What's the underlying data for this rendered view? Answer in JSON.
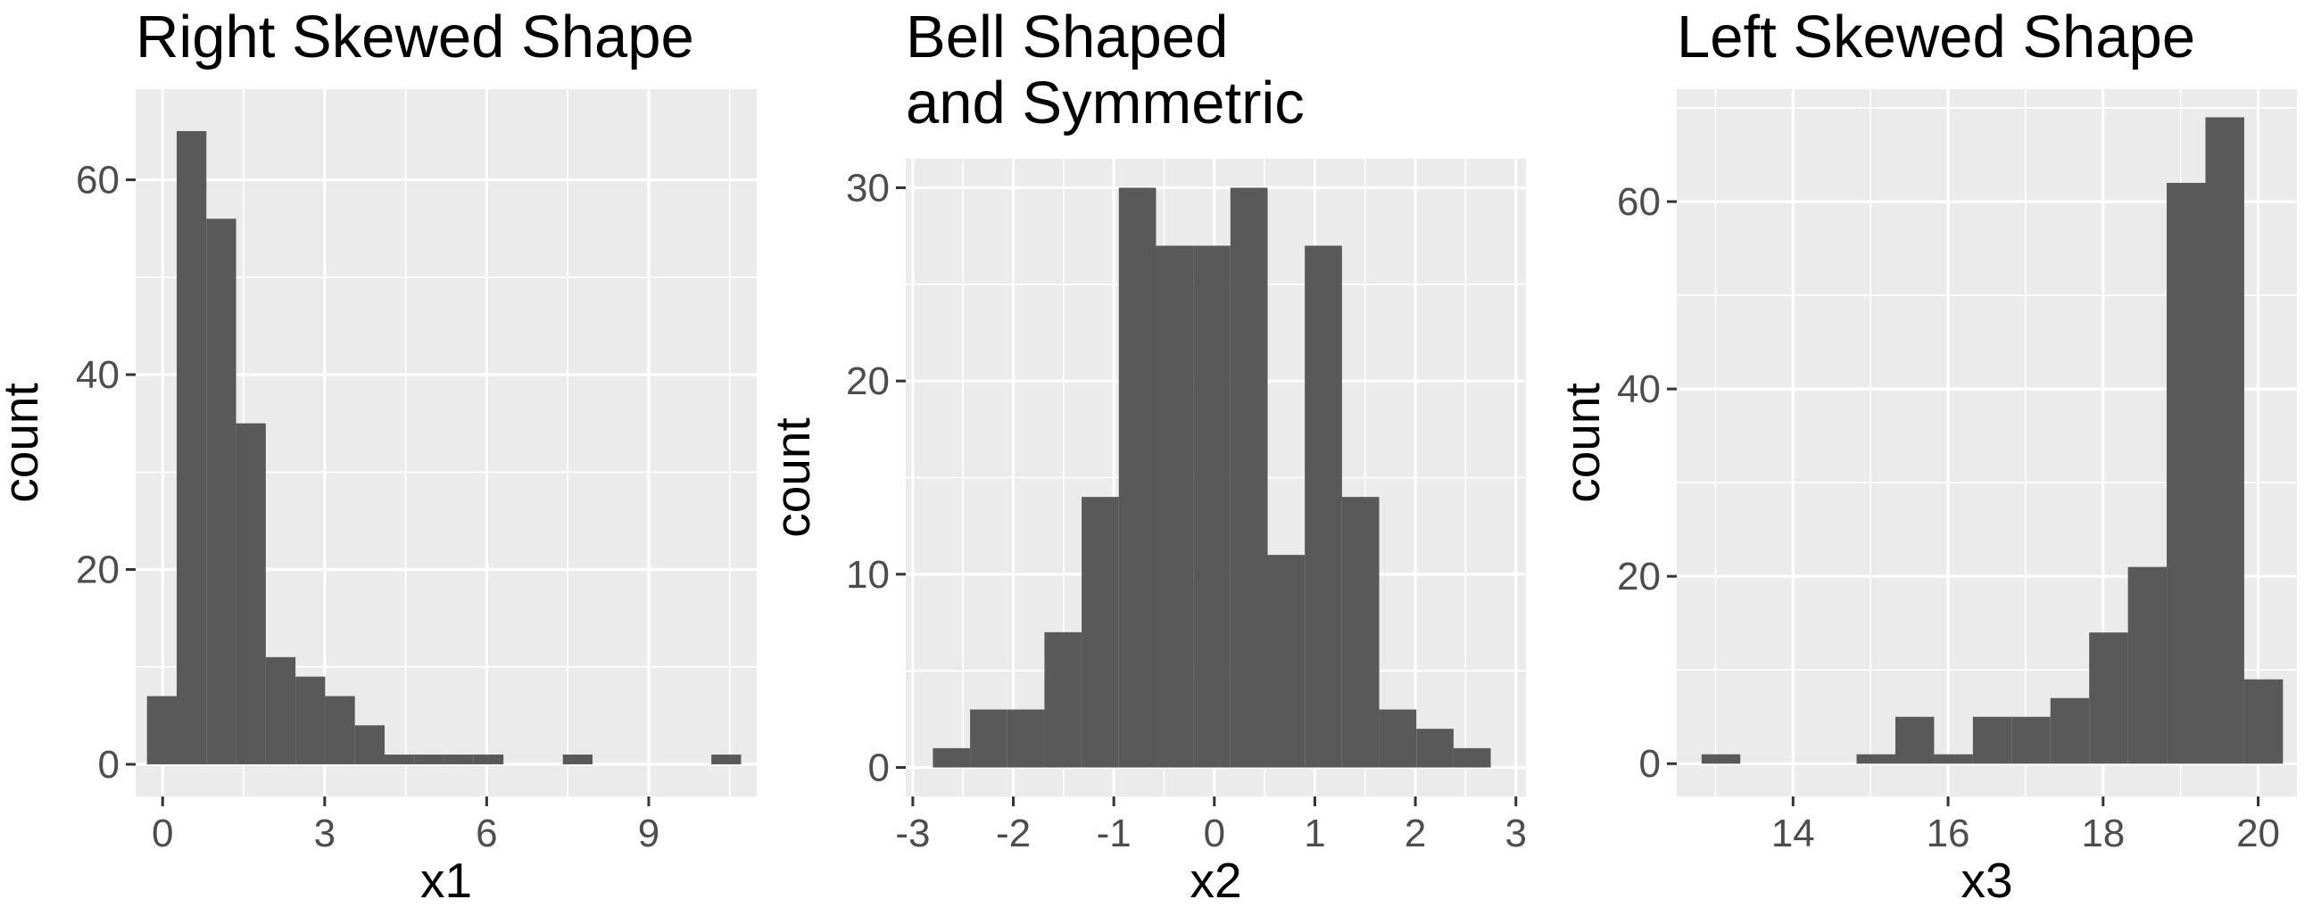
{
  "chart_data": [
    {
      "type": "bar",
      "title": "Right Skewed Shape",
      "xlabel": "x1",
      "ylabel": "count",
      "xlim": [
        -0.5,
        11.0
      ],
      "ylim": [
        -3.3,
        69.3
      ],
      "x_ticks": [
        0,
        3,
        6,
        9
      ],
      "x_tick_labels": [
        "0",
        "3",
        "6",
        "9"
      ],
      "y_ticks": [
        0,
        20,
        40,
        60
      ],
      "y_tick_labels": [
        "0",
        "20",
        "40",
        "60"
      ],
      "bin_width": 0.55,
      "bins": [
        {
          "x0": -0.29,
          "count": 7
        },
        {
          "x0": 0.26,
          "count": 65
        },
        {
          "x0": 0.81,
          "count": 56
        },
        {
          "x0": 1.36,
          "count": 35
        },
        {
          "x0": 1.91,
          "count": 11
        },
        {
          "x0": 2.46,
          "count": 9
        },
        {
          "x0": 3.01,
          "count": 7
        },
        {
          "x0": 3.56,
          "count": 4
        },
        {
          "x0": 4.11,
          "count": 1
        },
        {
          "x0": 4.66,
          "count": 1
        },
        {
          "x0": 5.21,
          "count": 1
        },
        {
          "x0": 5.76,
          "count": 1
        },
        {
          "x0": 7.41,
          "count": 1
        },
        {
          "x0": 10.16,
          "count": 1
        }
      ],
      "grid": true
    },
    {
      "type": "bar",
      "title": "Bell Shaped\nand Symmetric",
      "xlabel": "x2",
      "ylabel": "count",
      "xlim": [
        -3.07,
        3.1
      ],
      "ylim": [
        -1.5,
        31.5
      ],
      "x_ticks": [
        -3,
        -2,
        -1,
        0,
        1,
        2,
        3
      ],
      "x_tick_labels": [
        "-3",
        "-2",
        "-1",
        "0",
        "1",
        "2",
        "3"
      ],
      "y_ticks": [
        0,
        10,
        20,
        30
      ],
      "y_tick_labels": [
        "0",
        "10",
        "20",
        "30"
      ],
      "bin_width": 0.37,
      "bins": [
        {
          "x0": -2.8,
          "count": 1
        },
        {
          "x0": -2.43,
          "count": 3
        },
        {
          "x0": -2.06,
          "count": 3
        },
        {
          "x0": -1.69,
          "count": 7
        },
        {
          "x0": -1.32,
          "count": 14
        },
        {
          "x0": -0.95,
          "count": 30
        },
        {
          "x0": -0.58,
          "count": 27
        },
        {
          "x0": -0.21,
          "count": 27
        },
        {
          "x0": 0.16,
          "count": 30
        },
        {
          "x0": 0.53,
          "count": 11
        },
        {
          "x0": 0.9,
          "count": 27
        },
        {
          "x0": 1.27,
          "count": 14
        },
        {
          "x0": 1.64,
          "count": 3
        },
        {
          "x0": 2.01,
          "count": 2
        },
        {
          "x0": 2.38,
          "count": 1
        }
      ],
      "grid": true
    },
    {
      "type": "bar",
      "title": "Left Skewed Shape",
      "xlabel": "x3",
      "ylabel": "count",
      "xlim": [
        12.5,
        20.5
      ],
      "ylim": [
        -3.5,
        72.0
      ],
      "x_ticks": [
        14,
        16,
        18,
        20
      ],
      "x_tick_labels": [
        "14",
        "16",
        "18",
        "20"
      ],
      "y_ticks": [
        0,
        20,
        40,
        60
      ],
      "y_tick_labels": [
        "0",
        "20",
        "40",
        "60"
      ],
      "bin_width": 0.5,
      "bins": [
        {
          "x0": 12.82,
          "count": 1
        },
        {
          "x0": 14.82,
          "count": 1
        },
        {
          "x0": 15.32,
          "count": 5
        },
        {
          "x0": 15.82,
          "count": 1
        },
        {
          "x0": 16.32,
          "count": 5
        },
        {
          "x0": 16.82,
          "count": 5
        },
        {
          "x0": 17.32,
          "count": 7
        },
        {
          "x0": 17.82,
          "count": 14
        },
        {
          "x0": 18.32,
          "count": 21
        },
        {
          "x0": 18.82,
          "count": 62
        },
        {
          "x0": 19.32,
          "count": 69
        },
        {
          "x0": 19.82,
          "count": 9
        }
      ],
      "grid": true
    }
  ],
  "colors": {
    "panel_background": "#ebebeb",
    "grid_line": "#ffffff",
    "bar_fill": "#595959",
    "tick_mark": "#333333",
    "tick_label": "#4d4d4d",
    "title_text": "#000000"
  }
}
